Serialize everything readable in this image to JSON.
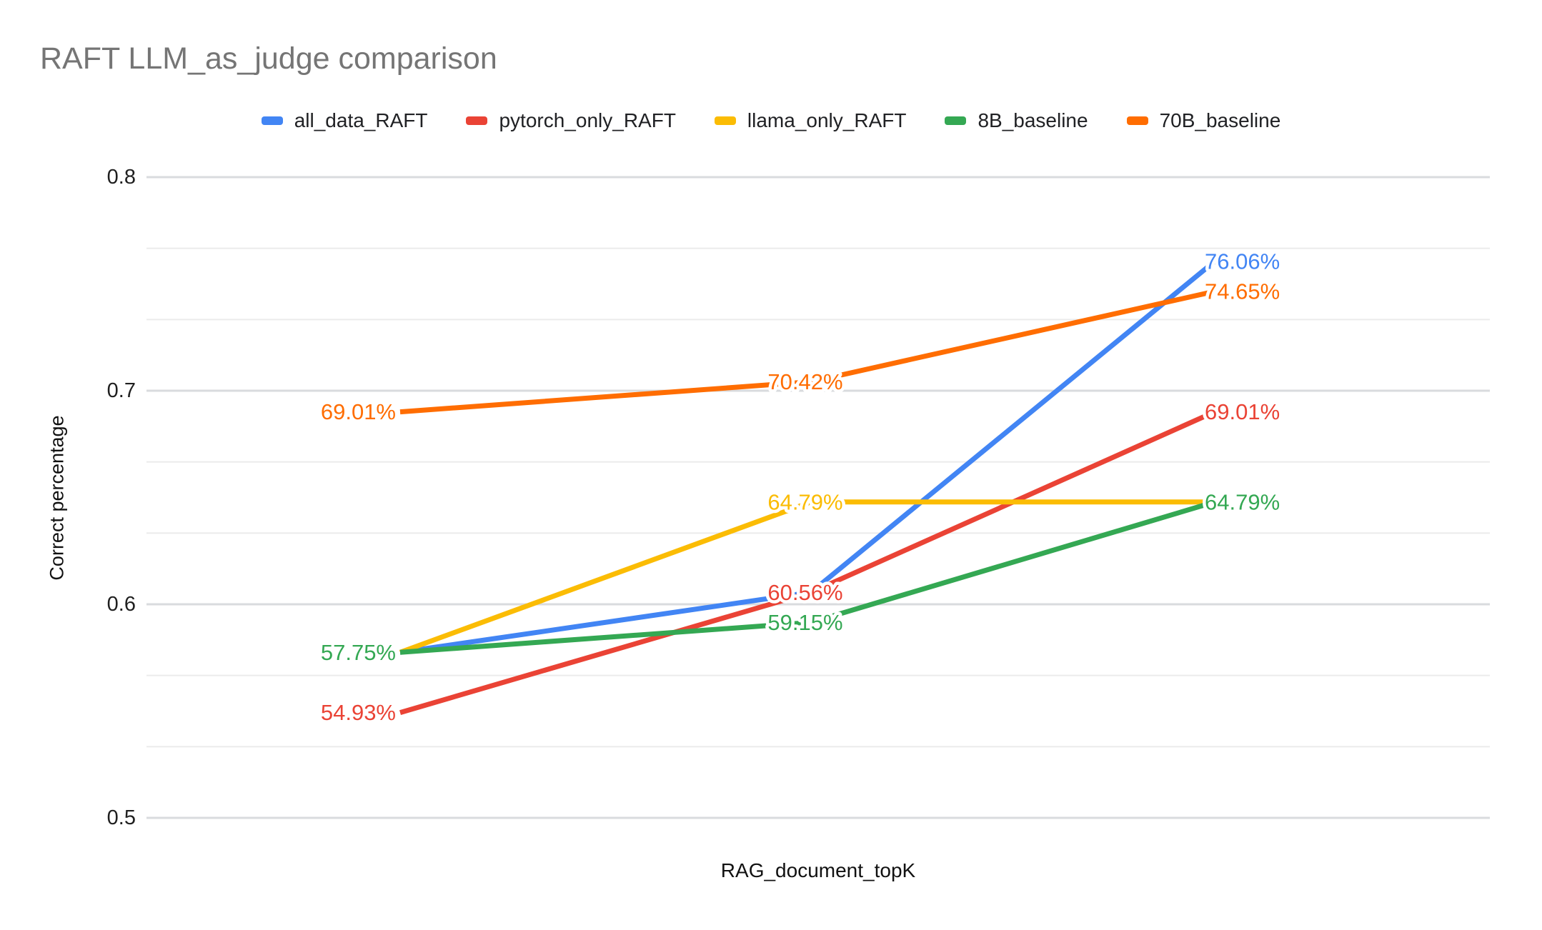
{
  "chart_data": {
    "type": "line",
    "title": "RAFT LLM_as_judge comparison",
    "xlabel": "RAG_document_topK",
    "ylabel": "Correct percentage",
    "ylim": [
      0.5,
      0.8
    ],
    "y_ticks": [
      0.8,
      0.7,
      0.6,
      0.5
    ],
    "y_tick_labels": [
      "0.8",
      "0.7",
      "0.6",
      "0.5"
    ],
    "x_tick_labels_shown": false,
    "num_x_points": 3,
    "grid": {
      "major_on": true,
      "minor_divisions_per_major": 3
    },
    "legend_position": "top",
    "series": [
      {
        "name": "all_data_RAFT",
        "color": "#4285F4",
        "values": [
          0.5775,
          0.6056,
          0.7606
        ],
        "point_labels": [
          null,
          null,
          "76.06%"
        ]
      },
      {
        "name": "pytorch_only_RAFT",
        "color": "#EA4335",
        "values": [
          0.5493,
          0.6056,
          0.6901
        ],
        "point_labels": [
          "54.93%",
          "60.56%",
          "69.01%"
        ]
      },
      {
        "name": "llama_only_RAFT",
        "color": "#FBBC04",
        "values": [
          0.5775,
          0.6479,
          0.6479
        ],
        "point_labels": [
          null,
          "64.79%",
          null
        ]
      },
      {
        "name": "8B_baseline",
        "color": "#34A853",
        "values": [
          0.5775,
          0.5915,
          0.6479
        ],
        "point_labels": [
          "57.75%",
          "59.15%",
          "64.79%"
        ]
      },
      {
        "name": "70B_baseline",
        "color": "#FF6D01",
        "values": [
          0.6901,
          0.7042,
          0.7465
        ],
        "point_labels": [
          "69.01%",
          "70.42%",
          "74.65%"
        ]
      }
    ]
  }
}
